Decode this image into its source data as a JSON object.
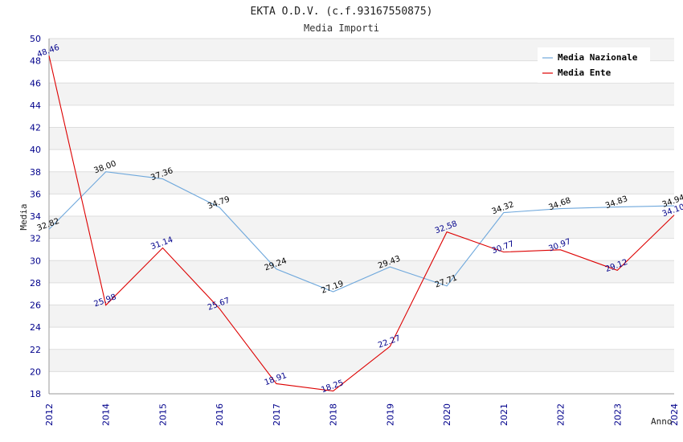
{
  "chart_data": {
    "type": "line",
    "title": "EKTA O.D.V. (c.f.93167550875)",
    "subtitle": "Media Importi",
    "xlabel": "Anno",
    "ylabel": "Media",
    "ylim": [
      18,
      50
    ],
    "yticks": [
      "18",
      "20",
      "22",
      "24",
      "26",
      "28",
      "30",
      "32",
      "34",
      "36",
      "38",
      "40",
      "42",
      "44",
      "46",
      "48",
      "50"
    ],
    "categories": [
      "2012",
      "2014",
      "2015",
      "2016",
      "2017",
      "2018",
      "2019",
      "2020",
      "2021",
      "2022",
      "2023",
      "2024"
    ],
    "grid": true,
    "legend_position": "top-right",
    "series": [
      {
        "name": "Media Nazionale",
        "color": "#6fa8dc",
        "values": [
          32.82,
          38.0,
          37.36,
          34.79,
          29.24,
          27.19,
          29.43,
          27.71,
          34.32,
          34.68,
          34.83,
          34.94
        ],
        "labels": [
          "32.82",
          "38.00",
          "37.36",
          "34.79",
          "29.24",
          "27.19",
          "29.43",
          "27.71",
          "34.32",
          "34.68",
          "34.83",
          "34.94"
        ]
      },
      {
        "name": "Media Ente",
        "color": "#dd0000",
        "values": [
          48.46,
          25.98,
          31.14,
          25.67,
          18.91,
          18.25,
          22.27,
          32.58,
          30.77,
          30.97,
          29.12,
          34.1
        ],
        "labels": [
          "48.46",
          "25.98",
          "31.14",
          "25.67",
          "18.91",
          "18.25",
          "22.27",
          "32.58",
          "30.77",
          "30.97",
          "29.12",
          "34.10"
        ]
      }
    ]
  }
}
